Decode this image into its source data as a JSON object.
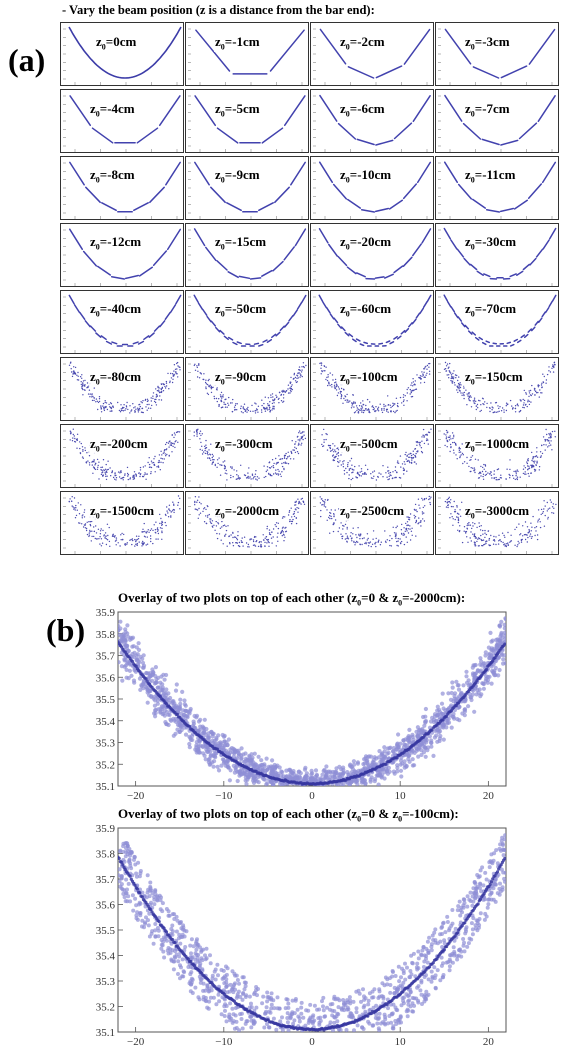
{
  "panel_a": {
    "letter": "(a)",
    "header": "- Vary the beam position (z is a distance from the bar end):",
    "z_values_cm": [
      0,
      -1,
      -2,
      -3,
      -4,
      -5,
      -6,
      -7,
      -8,
      -9,
      -10,
      -11,
      -12,
      -15,
      -20,
      -30,
      -40,
      -50,
      -60,
      -70,
      -80,
      -90,
      -100,
      -150,
      -200,
      -300,
      -500,
      -1000,
      -1500,
      -2000,
      -2500,
      -3000
    ],
    "label_prefix": "z",
    "label_sub": "0",
    "label_unit": "cm"
  },
  "panel_b": {
    "letter": "(b)",
    "plot1": {
      "title_main": "Overlay of two plots on top of each other (z",
      "title_mid": "=0 & z",
      "title_end": "=-2000cm):"
    },
    "plot2": {
      "title_main": "Overlay of two plots on top of each other (z",
      "title_mid": "=0 & z",
      "title_end": "=-100cm):"
    },
    "sub": "0"
  },
  "chart_data": [
    {
      "type": "scatter",
      "panel": "b-top",
      "title": "Overlay of two plots on top of each other (z0=0 & z0=-2000cm):",
      "xlabel": "",
      "ylabel": "",
      "xlim": [
        -22,
        22
      ],
      "ylim": [
        35.1,
        35.9
      ],
      "x_ticks": [
        -20,
        -10,
        0,
        10,
        20
      ],
      "y_ticks": [
        35.1,
        35.2,
        35.3,
        35.4,
        35.5,
        35.6,
        35.7,
        35.8,
        35.9
      ],
      "x_tick_labels": [
        "−20",
        "−10",
        "0",
        "10",
        "20"
      ],
      "y_tick_labels": [
        "35.1",
        "35.2",
        "35.3",
        "35.4",
        "35.5",
        "35.6",
        "35.7",
        "35.8",
        "35.9"
      ],
      "curve": {
        "vertex_x": 0,
        "vertex_y": 35.11,
        "y_at_x20": 35.65
      },
      "point_color": "#8f8fd6",
      "series": [
        {
          "z0_cm": 0,
          "pattern": "thin continuous parabola"
        },
        {
          "z0_cm": -2000,
          "pattern": "broad random scatter around the parabola"
        }
      ]
    },
    {
      "type": "scatter",
      "panel": "b-bottom",
      "title": "Overlay of two plots on top of each other (z0=0 & z0=-100cm):",
      "xlabel": "",
      "ylabel": "",
      "xlim": [
        -22,
        22
      ],
      "ylim": [
        35.1,
        35.9
      ],
      "x_ticks": [
        -20,
        -10,
        0,
        10,
        20
      ],
      "y_ticks": [
        35.1,
        35.2,
        35.3,
        35.4,
        35.5,
        35.6,
        35.7,
        35.8,
        35.9
      ],
      "x_tick_labels": [
        "−20",
        "−10",
        "0",
        "10",
        "20"
      ],
      "y_tick_labels": [
        "35.1",
        "35.2",
        "35.3",
        "35.4",
        "35.5",
        "35.6",
        "35.7",
        "35.8",
        "35.9"
      ],
      "curve": {
        "vertex_x": 0,
        "vertex_y": 35.11,
        "y_at_x20": 35.67
      },
      "point_color": "#8f8fd6",
      "series": [
        {
          "z0_cm": 0,
          "pattern": "thin continuous parabola"
        },
        {
          "z0_cm": -100,
          "pattern": "dense fan of parallel diagonal dashes around the parabola"
        }
      ]
    }
  ]
}
